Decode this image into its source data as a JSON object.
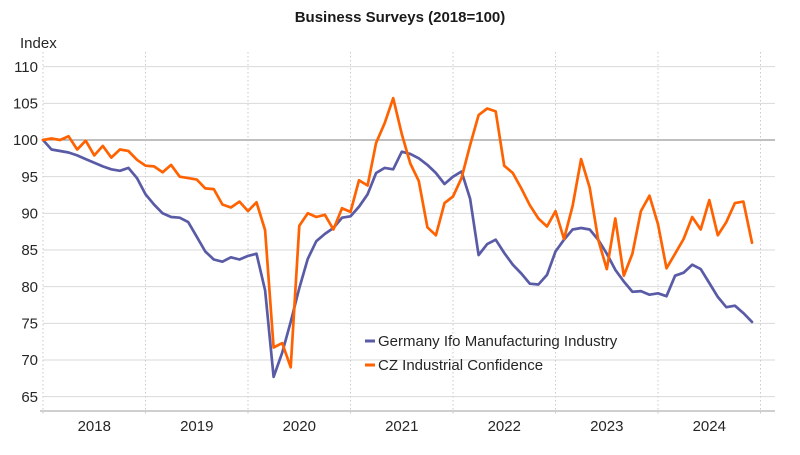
{
  "title": "Business Surveys (2018=100)",
  "y_axis_unit": "Index",
  "colors": {
    "germany_line": "#5A5BA6",
    "cz_line": "#FF6200",
    "grid_light": "#D9D9D9",
    "grid_100_line": "#7F7F7F",
    "axis_line": "#BFBFBF",
    "vertical_grid_dotted": "#C9C9C9",
    "text": "#262626"
  },
  "legend": {
    "item1": "Germany Ifo Manufacturing Industry",
    "item2": "CZ Industrial Confidence"
  },
  "chart_data": {
    "type": "line",
    "title": "Business Surveys (2018=100)",
    "xlabel": "",
    "ylabel": "Index",
    "ylim": [
      65,
      110
    ],
    "y_ticks": [
      110,
      105,
      100,
      95,
      90,
      85,
      80,
      75,
      70,
      65
    ],
    "reference_line_y": 100,
    "grid": true,
    "legend_position": "inside-bottom-center",
    "x_frequency": "monthly",
    "x_start": "2018-01",
    "x_end": "2024-12",
    "x_tick_labels": [
      "2018",
      "2019",
      "2020",
      "2021",
      "2022",
      "2023",
      "2024"
    ],
    "series": [
      {
        "name": "Germany Ifo Manufacturing Industry",
        "color": "#5A5BA6",
        "values": [
          100.0,
          98.7,
          98.5,
          98.3,
          97.9,
          97.4,
          96.9,
          96.4,
          96.0,
          95.8,
          96.2,
          94.8,
          92.6,
          91.2,
          90.0,
          89.5,
          89.4,
          88.8,
          86.8,
          84.8,
          83.7,
          83.4,
          84.0,
          83.7,
          84.2,
          84.5,
          79.5,
          67.7,
          71.0,
          75.2,
          79.8,
          83.8,
          86.2,
          87.2,
          88.0,
          89.4,
          89.6,
          90.9,
          92.6,
          95.5,
          96.2,
          96.0,
          98.4,
          98.1,
          97.5,
          96.6,
          95.5,
          94.0,
          95.0,
          95.7,
          92.0,
          84.3,
          85.8,
          86.4,
          84.6,
          83.0,
          81.8,
          80.4,
          80.3,
          81.6,
          84.8,
          86.4,
          87.8,
          88.0,
          87.8,
          86.4,
          84.5,
          82.3,
          80.7,
          79.3,
          79.4,
          78.9,
          79.1,
          78.7,
          81.5,
          81.9,
          83.0,
          82.4,
          80.5,
          78.6,
          77.2,
          77.4,
          76.4,
          75.2
        ]
      },
      {
        "name": "CZ Industrial Confidence",
        "color": "#FF6200",
        "values": [
          100.0,
          100.2,
          100.0,
          100.5,
          98.7,
          99.9,
          97.9,
          99.2,
          97.6,
          98.7,
          98.5,
          97.3,
          96.5,
          96.4,
          95.6,
          96.6,
          95.0,
          94.8,
          94.6,
          93.4,
          93.3,
          91.2,
          90.8,
          91.6,
          90.3,
          91.5,
          87.7,
          71.7,
          72.3,
          69.0,
          88.3,
          90.0,
          89.5,
          89.8,
          87.8,
          90.7,
          90.2,
          94.5,
          93.8,
          99.6,
          102.3,
          105.7,
          100.8,
          96.8,
          94.4,
          88.1,
          87.0,
          91.4,
          92.3,
          94.8,
          99.3,
          103.4,
          104.3,
          103.9,
          96.5,
          95.5,
          93.4,
          91.1,
          89.3,
          88.2,
          90.3,
          86.5,
          91.0,
          97.4,
          93.5,
          86.4,
          82.4,
          89.3,
          81.5,
          84.5,
          90.3,
          92.4,
          88.5,
          82.5,
          84.5,
          86.5,
          89.5,
          87.8,
          91.8,
          87.0,
          88.8,
          91.4,
          91.6,
          86.0
        ]
      }
    ]
  }
}
